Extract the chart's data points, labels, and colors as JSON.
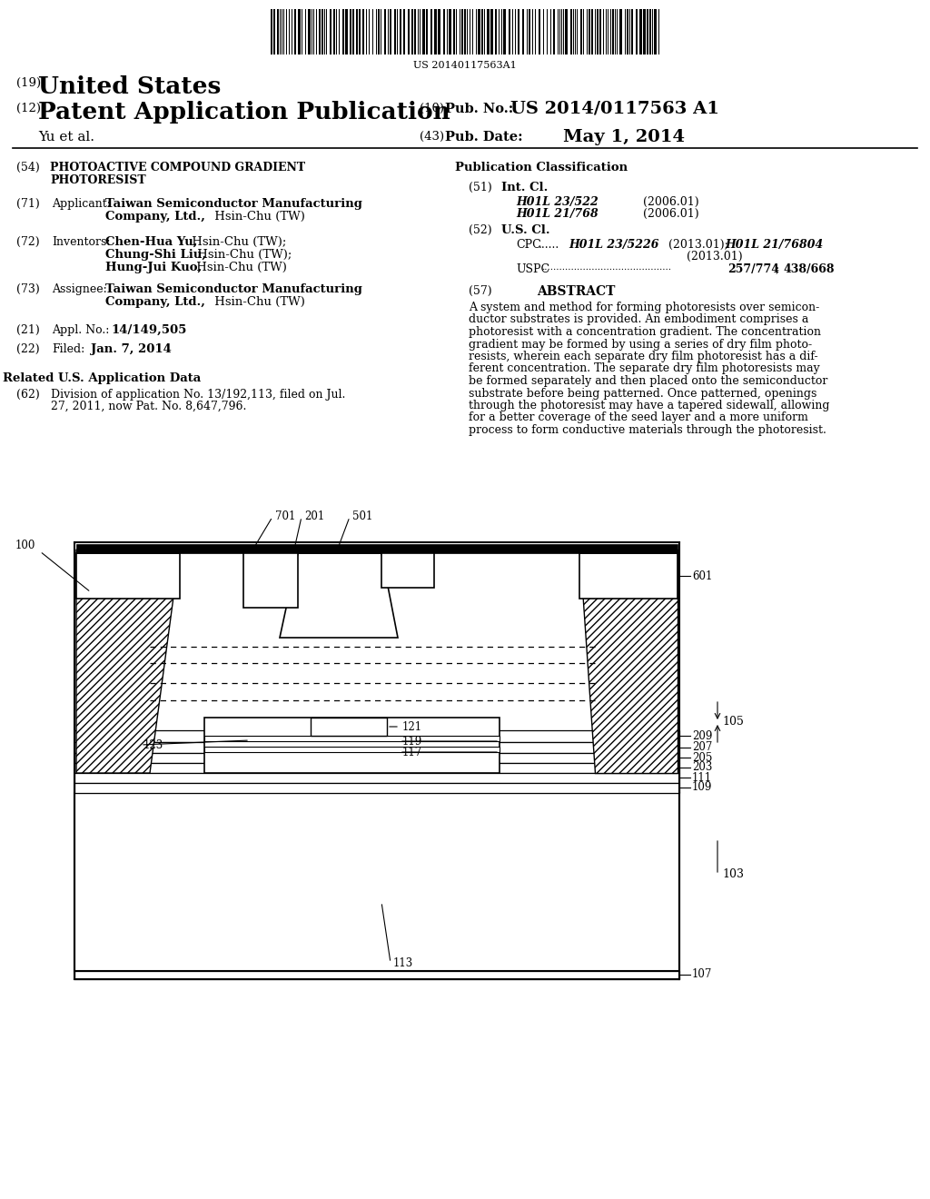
{
  "bg_color": "#ffffff",
  "barcode_text": "US 20140117563A1",
  "abstract_lines": [
    "A system and method for forming photoresists over semicon-",
    "ductor substrates is provided. An embodiment comprises a",
    "photoresist with a concentration gradient. The concentration",
    "gradient may be formed by using a series of dry film photo-",
    "resists, wherein each separate dry film photoresist has a dif-",
    "ferent concentration. The separate dry film photoresists may",
    "be formed separately and then placed onto the semiconductor",
    "substrate before being patterned. Once patterned, openings",
    "through the photoresist may have a tapered sidewall, allowing",
    "for a better coverage of the seed layer and a more uniform",
    "process to form conductive materials through the photoresist."
  ]
}
